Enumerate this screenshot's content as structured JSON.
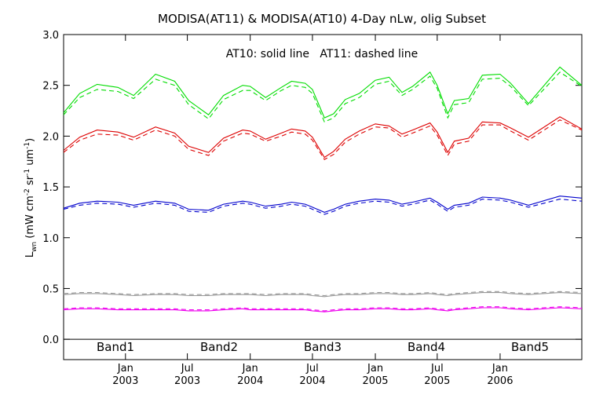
{
  "chart_data": {
    "type": "line",
    "title": "MODISA(AT11) & MODISA(AT10) 4-Day nLw, olig Subset",
    "annotation": "AT10: solid line   AT11: dashed line",
    "ylabel_main": "L",
    "ylabel_sub": "wn",
    "ylabel_units": "(mW cm",
    "ylabel_exp1": "-2",
    "ylabel_mid": " sr",
    "ylabel_exp2": "-1",
    "ylabel_tail": " um",
    "ylabel_exp3": "-1",
    "ylabel_close": ")",
    "ylim": [
      -0.2,
      3.0
    ],
    "yticks": [
      "0.0",
      "0.5",
      "1.0",
      "1.5",
      "2.0",
      "2.5",
      "3.0"
    ],
    "xlim": [
      "2002-07-04",
      "2006-08-28"
    ],
    "xticks": [
      {
        "date": "2003-01-01",
        "month": "Jan",
        "year": "2003"
      },
      {
        "date": "2003-07-01",
        "month": "Jul",
        "year": "2003"
      },
      {
        "date": "2004-01-01",
        "month": "Jan",
        "year": "2004"
      },
      {
        "date": "2004-07-01",
        "month": "Jul",
        "year": "2004"
      },
      {
        "date": "2005-01-01",
        "month": "Jan",
        "year": "2005"
      },
      {
        "date": "2005-07-01",
        "month": "Jul",
        "year": "2005"
      },
      {
        "date": "2006-01-01",
        "month": "Jan",
        "year": "2006"
      }
    ],
    "grid": false,
    "legend_position": "bottom",
    "line_styles": {
      "AT10": "solid",
      "AT11": "dashed"
    },
    "x": [
      "2002-07-04",
      "2002-08-20",
      "2002-10-10",
      "2002-12-10",
      "2003-01-25",
      "2003-03-30",
      "2003-05-25",
      "2003-07-05",
      "2003-09-01",
      "2003-10-15",
      "2003-12-10",
      "2004-01-01",
      "2004-02-15",
      "2004-04-01",
      "2004-05-01",
      "2004-06-10",
      "2004-07-01",
      "2004-08-05",
      "2004-09-01",
      "2004-10-05",
      "2004-11-15",
      "2005-01-01",
      "2005-02-10",
      "2005-03-20",
      "2005-04-20",
      "2005-06-10",
      "2005-07-01",
      "2005-08-01",
      "2005-08-20",
      "2005-10-01",
      "2005-11-10",
      "2006-01-01",
      "2006-02-01",
      "2006-03-25",
      "2006-06-25",
      "2006-08-28"
    ],
    "series": [
      {
        "name": "Band1",
        "color": "#00dd00",
        "values": [
          2.23,
          2.42,
          2.51,
          2.48,
          2.4,
          2.61,
          2.54,
          2.35,
          2.21,
          2.4,
          2.5,
          2.49,
          2.38,
          2.48,
          2.54,
          2.52,
          2.46,
          2.18,
          2.22,
          2.36,
          2.42,
          2.55,
          2.58,
          2.43,
          2.49,
          2.63,
          2.5,
          2.22,
          2.35,
          2.37,
          2.6,
          2.61,
          2.52,
          2.32,
          2.68,
          2.5
        ],
        "values_dashed": [
          2.21,
          2.38,
          2.46,
          2.44,
          2.37,
          2.56,
          2.5,
          2.31,
          2.17,
          2.36,
          2.45,
          2.45,
          2.35,
          2.45,
          2.5,
          2.48,
          2.42,
          2.14,
          2.18,
          2.32,
          2.38,
          2.51,
          2.54,
          2.4,
          2.46,
          2.59,
          2.47,
          2.18,
          2.31,
          2.33,
          2.56,
          2.57,
          2.49,
          2.3,
          2.63,
          2.49
        ]
      },
      {
        "name": "Band2",
        "color": "#dd0000",
        "values": [
          1.86,
          1.99,
          2.06,
          2.04,
          1.99,
          2.09,
          2.03,
          1.9,
          1.84,
          1.98,
          2.06,
          2.05,
          1.97,
          2.03,
          2.07,
          2.05,
          1.99,
          1.79,
          1.85,
          1.97,
          2.05,
          2.12,
          2.1,
          2.02,
          2.06,
          2.13,
          2.04,
          1.84,
          1.95,
          1.98,
          2.14,
          2.13,
          2.08,
          1.99,
          2.19,
          2.07
        ],
        "values_dashed": [
          1.84,
          1.96,
          2.02,
          2.01,
          1.96,
          2.06,
          2.0,
          1.87,
          1.81,
          1.95,
          2.03,
          2.02,
          1.95,
          2.0,
          2.04,
          2.02,
          1.96,
          1.77,
          1.82,
          1.94,
          2.02,
          2.09,
          2.08,
          1.99,
          2.03,
          2.1,
          2.01,
          1.81,
          1.92,
          1.95,
          2.11,
          2.11,
          2.05,
          1.96,
          2.16,
          2.06
        ]
      },
      {
        "name": "Band3",
        "color": "#0000cc",
        "values": [
          1.29,
          1.34,
          1.36,
          1.35,
          1.32,
          1.36,
          1.34,
          1.28,
          1.27,
          1.33,
          1.36,
          1.35,
          1.31,
          1.33,
          1.35,
          1.33,
          1.3,
          1.25,
          1.28,
          1.33,
          1.36,
          1.38,
          1.37,
          1.33,
          1.35,
          1.39,
          1.35,
          1.28,
          1.32,
          1.34,
          1.4,
          1.39,
          1.37,
          1.32,
          1.41,
          1.39
        ],
        "values_dashed": [
          1.28,
          1.32,
          1.34,
          1.33,
          1.3,
          1.34,
          1.32,
          1.26,
          1.25,
          1.31,
          1.34,
          1.33,
          1.29,
          1.31,
          1.33,
          1.31,
          1.28,
          1.23,
          1.26,
          1.31,
          1.34,
          1.36,
          1.35,
          1.31,
          1.33,
          1.37,
          1.33,
          1.26,
          1.3,
          1.32,
          1.38,
          1.37,
          1.35,
          1.3,
          1.38,
          1.36
        ]
      },
      {
        "name": "Band4",
        "color": "#999999",
        "values": [
          0.44,
          0.45,
          0.45,
          0.44,
          0.43,
          0.44,
          0.44,
          0.43,
          0.43,
          0.44,
          0.44,
          0.44,
          0.43,
          0.44,
          0.44,
          0.44,
          0.43,
          0.42,
          0.43,
          0.44,
          0.44,
          0.45,
          0.45,
          0.44,
          0.44,
          0.45,
          0.44,
          0.43,
          0.44,
          0.45,
          0.46,
          0.46,
          0.45,
          0.44,
          0.46,
          0.45
        ],
        "values_dashed": [
          0.45,
          0.46,
          0.46,
          0.45,
          0.44,
          0.45,
          0.45,
          0.44,
          0.44,
          0.45,
          0.45,
          0.45,
          0.44,
          0.45,
          0.45,
          0.45,
          0.44,
          0.43,
          0.44,
          0.45,
          0.45,
          0.46,
          0.46,
          0.45,
          0.45,
          0.46,
          0.45,
          0.44,
          0.45,
          0.46,
          0.47,
          0.47,
          0.46,
          0.45,
          0.47,
          0.46
        ]
      },
      {
        "name": "Band5",
        "color": "#ee00ee",
        "values": [
          0.29,
          0.3,
          0.3,
          0.29,
          0.29,
          0.29,
          0.29,
          0.28,
          0.28,
          0.29,
          0.3,
          0.29,
          0.29,
          0.29,
          0.29,
          0.29,
          0.28,
          0.27,
          0.28,
          0.29,
          0.29,
          0.3,
          0.3,
          0.29,
          0.29,
          0.3,
          0.29,
          0.28,
          0.29,
          0.3,
          0.31,
          0.31,
          0.3,
          0.29,
          0.31,
          0.3
        ],
        "values_dashed": [
          0.3,
          0.31,
          0.31,
          0.3,
          0.3,
          0.3,
          0.3,
          0.29,
          0.29,
          0.3,
          0.31,
          0.3,
          0.3,
          0.3,
          0.3,
          0.3,
          0.29,
          0.28,
          0.29,
          0.3,
          0.3,
          0.31,
          0.31,
          0.3,
          0.3,
          0.31,
          0.3,
          0.29,
          0.3,
          0.31,
          0.32,
          0.32,
          0.31,
          0.3,
          0.32,
          0.31
        ]
      }
    ]
  }
}
